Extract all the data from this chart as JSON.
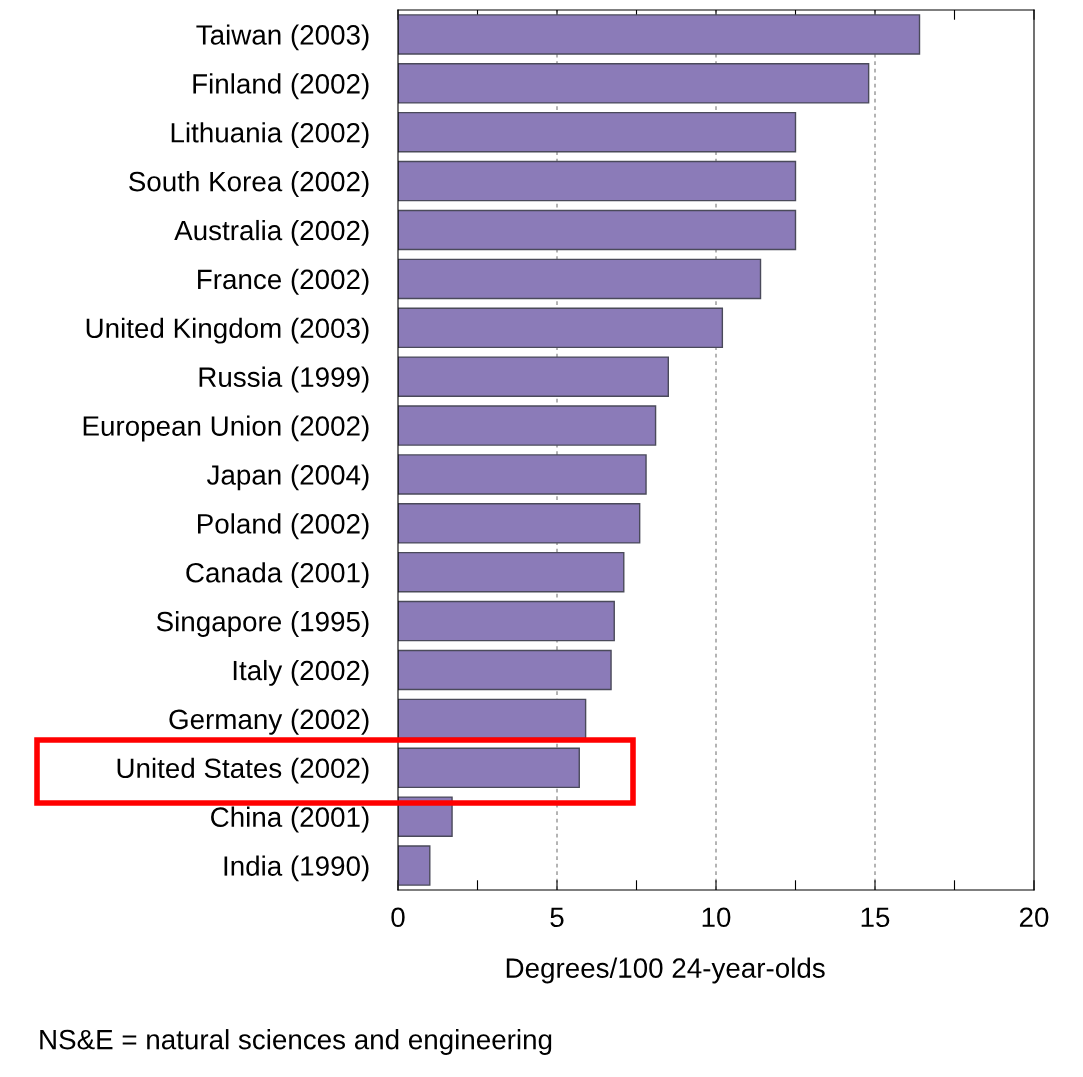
{
  "chart_data": {
    "type": "bar",
    "orientation": "horizontal",
    "xlabel": "Degrees/100 24-year-olds",
    "categories": [
      "Taiwan (2003)",
      "Finland (2002)",
      "Lithuania (2002)",
      "South Korea (2002)",
      "Australia (2002)",
      "France (2002)",
      "United Kingdom (2003)",
      "Russia (1999)",
      "European Union (2002)",
      "Japan (2004)",
      "Poland (2002)",
      "Canada (2001)",
      "Singapore (1995)",
      "Italy (2002)",
      "Germany (2002)",
      "United States (2002)",
      "China (2001)",
      "India (1990)"
    ],
    "values": [
      16.4,
      14.8,
      12.5,
      12.5,
      12.5,
      11.4,
      10.2,
      8.5,
      8.1,
      7.8,
      7.6,
      7.1,
      6.8,
      6.7,
      5.9,
      5.7,
      1.7,
      1.0
    ],
    "color": "#8b7bb8",
    "xlim": [
      0,
      20
    ],
    "xticks": [
      0,
      {
        "value": 2.5,
        "label": null
      },
      5,
      {
        "value": 7.5,
        "label": null
      },
      10,
      {
        "value": 12.5,
        "label": null
      },
      15,
      {
        "value": 17.5,
        "label": null
      },
      20
    ],
    "grid": "x",
    "annotations": [
      "NS&E = natural sciences and engineering"
    ]
  }
}
